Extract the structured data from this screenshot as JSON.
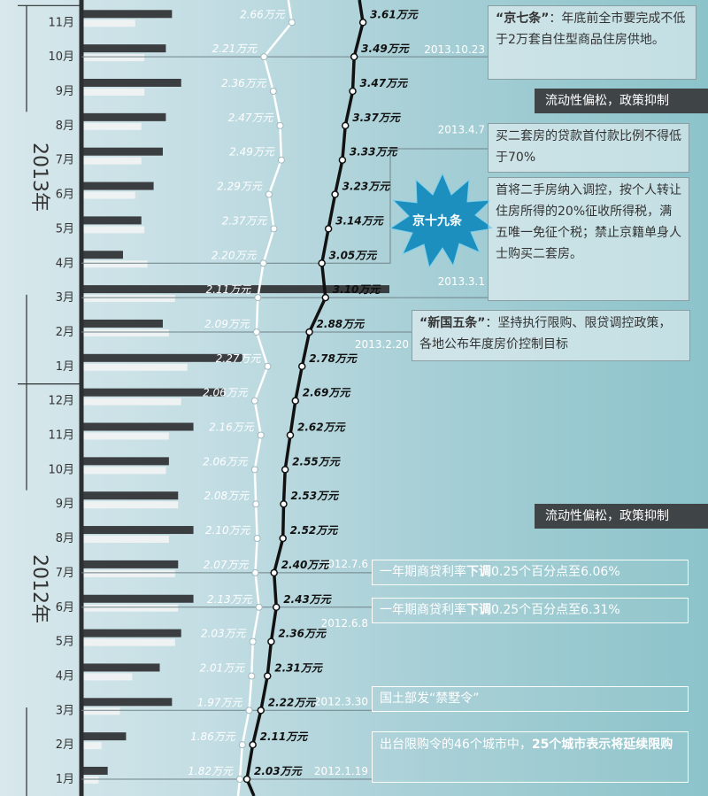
{
  "chart_data": {
    "type": "line",
    "unit": "万元",
    "months": [
      {
        "label": "1月",
        "year": "2012年",
        "white": 1.82,
        "black": 2.03
      },
      {
        "label": "2月",
        "year": "2012年",
        "white": 1.86,
        "black": 2.11
      },
      {
        "label": "3月",
        "year": "2012年",
        "white": 1.97,
        "black": 2.22
      },
      {
        "label": "4月",
        "year": "2012年",
        "white": 2.01,
        "black": 2.31
      },
      {
        "label": "5月",
        "year": "2012年",
        "white": 2.03,
        "black": 2.36
      },
      {
        "label": "6月",
        "year": "2012年",
        "white": 2.13,
        "black": 2.43
      },
      {
        "label": "7月",
        "year": "2012年",
        "white": 2.07,
        "black": 2.4
      },
      {
        "label": "8月",
        "year": "2012年",
        "white": 2.1,
        "black": 2.52
      },
      {
        "label": "9月",
        "year": "2012年",
        "white": 2.08,
        "black": 2.53
      },
      {
        "label": "10月",
        "year": "2012年",
        "white": 2.06,
        "black": 2.55
      },
      {
        "label": "11月",
        "year": "2012年",
        "white": 2.16,
        "black": 2.62
      },
      {
        "label": "12月",
        "year": "2012年",
        "white": 2.06,
        "black": 2.69
      },
      {
        "label": "1月",
        "year": "2013年",
        "white": 2.27,
        "black": 2.78
      },
      {
        "label": "2月",
        "year": "2013年",
        "white": 2.09,
        "black": 2.88
      },
      {
        "label": "3月",
        "year": "2013年",
        "white": 2.11,
        "black": 3.1
      },
      {
        "label": "4月",
        "year": "2013年",
        "white": 2.2,
        "black": 3.05
      },
      {
        "label": "5月",
        "year": "2013年",
        "white": 2.37,
        "black": 3.14
      },
      {
        "label": "6月",
        "year": "2013年",
        "white": 2.29,
        "black": 3.23
      },
      {
        "label": "7月",
        "year": "2013年",
        "white": 2.49,
        "black": 3.33
      },
      {
        "label": "8月",
        "year": "2013年",
        "white": 2.47,
        "black": 3.37
      },
      {
        "label": "9月",
        "year": "2013年",
        "white": 2.36,
        "black": 3.47
      },
      {
        "label": "10月",
        "year": "2013年",
        "white": 2.21,
        "black": 3.49
      },
      {
        "label": "11月",
        "year": "2013年",
        "white": 2.66,
        "black": 3.61
      }
    ],
    "bars_dark": [
      0.08,
      0.14,
      0.29,
      0.25,
      0.32,
      0.36,
      0.31,
      0.36,
      0.31,
      0.28,
      0.36,
      0.46,
      0.52,
      0.26,
      1.0,
      0.13,
      0.19,
      0.23,
      0.26,
      0.27,
      0.32,
      0.27,
      0.29
    ],
    "bars_light": [
      0.05,
      0.06,
      0.12,
      0.16,
      0.3,
      0.31,
      0.3,
      0.28,
      0.31,
      0.27,
      0.28,
      0.32,
      0.34,
      0.28,
      0.3,
      0.21,
      0.2,
      0.17,
      0.19,
      0.19,
      0.2,
      0.2,
      0.17
    ],
    "years": [
      "2012年",
      "2013年"
    ]
  },
  "colors": {
    "white_line": "#ffffff",
    "black_line": "#111111",
    "bar_dark": "#3a3e40",
    "bar_light": "#eef2f3",
    "axis": "#2b2f31"
  },
  "annotations": {
    "jing7_title": "“京七条”",
    "jing7_body": "：年底前全市要完成不低于2万套自住型商品住房供地。",
    "jing7_date": "2013.10.23",
    "banner_top": "流动性偏松，政策抑制",
    "second_home_date": "2013.4.7",
    "second_home": "买二套房的贷款首付款比例不得低于70%",
    "jing19": "京十九条",
    "jing19_body": "首将二手房纳入调控，按个人转让住房所得的20%征收所得税，满五唯一免征个税；禁止京籍单身人士购买二套房。",
    "jing19_date": "2013.3.1",
    "xinguo5_title": "“新国五条”",
    "xinguo5_body": "：坚持执行限购、限贷调控政策，各地公布年度房价控制目标",
    "xinguo5_date": "2013.2.20",
    "banner_mid": "流动性偏松，政策抑制",
    "rate1_date": "2012.7.6",
    "rate1_pre": "一年期商贷利率",
    "rate1_bold": "下调",
    "rate1_post": "0.25个百分点至6.06%",
    "rate2_date": "2012.6.8",
    "rate2_pre": "一年期商贷利率",
    "rate2_bold": "下调",
    "rate2_post": "0.25个百分点至6.31%",
    "villa_date": "2012.3.30",
    "villa": "国土部发“禁墅令”",
    "limit_date": "2012.1.19",
    "limit_pre": "出台限购令的46个城市中，",
    "limit_bold": "25个城市表示将延续限购"
  }
}
